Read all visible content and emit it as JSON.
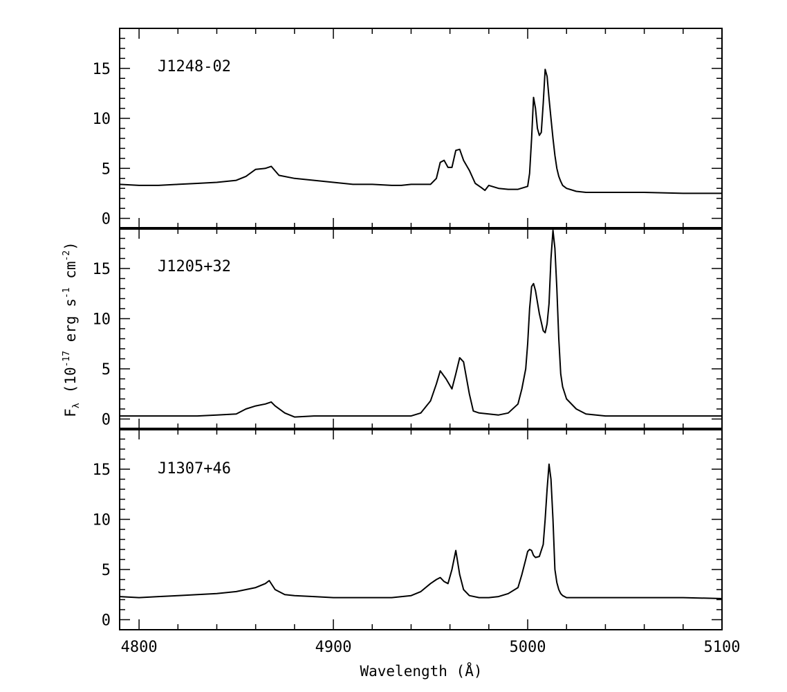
{
  "chart_data": {
    "type": "line",
    "xlabel": "Wavelength (Å)",
    "ylabel_main": "F",
    "ylabel_sub": "λ",
    "ylabel_rest": "(10",
    "ylabel_exp1": "-17",
    "ylabel_mid": " erg s",
    "ylabel_exp2": "-1",
    "ylabel_cm": " cm",
    "ylabel_exp3": "-2",
    "ylabel_close": ")",
    "xlim": [
      4790,
      5100
    ],
    "x_ticks": [
      4800,
      4900,
      5000,
      5100
    ],
    "x_tick_labels": [
      "4800",
      "4900",
      "5000",
      "5100"
    ],
    "panels": [
      {
        "name": "J1248-02",
        "ylim": [
          -1,
          19
        ],
        "y_ticks": [
          0,
          5,
          10,
          15
        ],
        "y_tick_labels": [
          "0",
          "5",
          "10",
          "15"
        ],
        "x": [
          4790,
          4800,
          4810,
          4820,
          4830,
          4840,
          4850,
          4855,
          4860,
          4865,
          4868,
          4872,
          4880,
          4890,
          4900,
          4910,
          4920,
          4930,
          4935,
          4940,
          4945,
          4950,
          4953,
          4955,
          4957,
          4959,
          4961,
          4963,
          4965,
          4967,
          4970,
          4973,
          4976,
          4978,
          4980,
          4985,
          4990,
          4995,
          5000,
          5001,
          5002,
          5003,
          5004,
          5005,
          5006,
          5007,
          5008,
          5009,
          5010,
          5011,
          5012,
          5013,
          5014,
          5015,
          5016,
          5017,
          5018,
          5020,
          5025,
          5030,
          5040,
          5060,
          5080,
          5100
        ],
        "y": [
          3.4,
          3.3,
          3.3,
          3.4,
          3.5,
          3.6,
          3.8,
          4.2,
          4.9,
          5.0,
          5.2,
          4.3,
          4.0,
          3.8,
          3.6,
          3.4,
          3.4,
          3.3,
          3.3,
          3.4,
          3.4,
          3.4,
          4.0,
          5.6,
          5.8,
          5.1,
          5.1,
          6.8,
          6.9,
          5.8,
          4.8,
          3.5,
          3.1,
          2.8,
          3.3,
          3.0,
          2.9,
          2.9,
          3.2,
          4.5,
          8.0,
          12.1,
          11.0,
          9.0,
          8.3,
          8.6,
          11.5,
          14.9,
          14.2,
          12.0,
          10.0,
          8.0,
          6.3,
          5.0,
          4.2,
          3.7,
          3.3,
          3.0,
          2.7,
          2.6,
          2.6,
          2.6,
          2.5,
          2.5
        ]
      },
      {
        "name": "J1205+32",
        "ylim": [
          -1,
          19
        ],
        "y_ticks": [
          0,
          5,
          10,
          15
        ],
        "y_tick_labels": [
          "0",
          "5",
          "10",
          "15"
        ],
        "x": [
          4790,
          4800,
          4810,
          4820,
          4830,
          4840,
          4850,
          4855,
          4860,
          4865,
          4868,
          4870,
          4875,
          4880,
          4890,
          4900,
          4910,
          4920,
          4930,
          4940,
          4945,
          4950,
          4953,
          4955,
          4958,
          4961,
          4963,
          4965,
          4967,
          4970,
          4972,
          4975,
          4980,
          4985,
          4990,
          4995,
          4997,
          4999,
          5000,
          5001,
          5002,
          5003,
          5004,
          5006,
          5008,
          5009,
          5010,
          5011,
          5012,
          5013,
          5014,
          5015,
          5016,
          5017,
          5018,
          5020,
          5025,
          5030,
          5040,
          5060,
          5080,
          5100
        ],
        "y": [
          0.3,
          0.3,
          0.3,
          0.3,
          0.3,
          0.4,
          0.5,
          1.0,
          1.3,
          1.5,
          1.7,
          1.3,
          0.6,
          0.2,
          0.3,
          0.3,
          0.3,
          0.3,
          0.3,
          0.3,
          0.6,
          1.8,
          3.5,
          4.8,
          4.0,
          3.0,
          4.5,
          6.1,
          5.7,
          2.5,
          0.8,
          0.6,
          0.5,
          0.4,
          0.6,
          1.5,
          3.0,
          5.0,
          7.5,
          11.0,
          13.2,
          13.5,
          12.8,
          10.5,
          8.8,
          8.6,
          9.5,
          11.5,
          16.0,
          18.8,
          17.0,
          13.0,
          8.0,
          4.5,
          3.2,
          2.0,
          1.0,
          0.5,
          0.3,
          0.3,
          0.3,
          0.3
        ]
      },
      {
        "name": "J1307+46",
        "ylim": [
          -1,
          19
        ],
        "y_ticks": [
          0,
          5,
          10,
          15
        ],
        "y_tick_labels": [
          "0",
          "5",
          "10",
          "15"
        ],
        "x": [
          4790,
          4800,
          4810,
          4820,
          4830,
          4840,
          4850,
          4855,
          4860,
          4865,
          4867,
          4870,
          4875,
          4880,
          4890,
          4900,
          4910,
          4920,
          4930,
          4940,
          4945,
          4950,
          4953,
          4955,
          4957,
          4959,
          4961,
          4963,
          4965,
          4967,
          4970,
          4975,
          4980,
          4985,
          4990,
          4995,
          4997,
          4999,
          5000,
          5001,
          5002,
          5003,
          5004,
          5006,
          5008,
          5009,
          5010,
          5011,
          5012,
          5013,
          5014,
          5015,
          5016,
          5017,
          5018,
          5020,
          5025,
          5030,
          5040,
          5060,
          5080,
          5100
        ],
        "y": [
          2.3,
          2.2,
          2.3,
          2.4,
          2.5,
          2.6,
          2.8,
          3.0,
          3.2,
          3.6,
          3.9,
          3.0,
          2.5,
          2.4,
          2.3,
          2.2,
          2.2,
          2.2,
          2.2,
          2.4,
          2.8,
          3.6,
          4.0,
          4.2,
          3.8,
          3.6,
          5.0,
          6.9,
          4.5,
          3.0,
          2.4,
          2.2,
          2.2,
          2.3,
          2.6,
          3.2,
          4.5,
          6.0,
          6.8,
          7.0,
          6.9,
          6.4,
          6.2,
          6.3,
          7.5,
          10.0,
          13.0,
          15.5,
          14.0,
          10.0,
          5.0,
          3.7,
          3.0,
          2.6,
          2.4,
          2.2,
          2.2,
          2.2,
          2.2,
          2.2,
          2.2,
          2.1
        ]
      }
    ]
  }
}
